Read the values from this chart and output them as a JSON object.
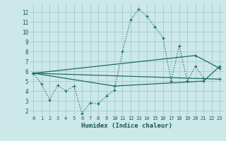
{
  "title": "",
  "xlabel": "Humidex (Indice chaleur)",
  "bg_color": "#cce8e8",
  "grid_color": "#aacfcf",
  "line_color": "#1a6b6b",
  "xlim": [
    -0.5,
    23.5
  ],
  "ylim": [
    1.5,
    12.8
  ],
  "xticks": [
    0,
    1,
    2,
    3,
    4,
    5,
    6,
    7,
    8,
    9,
    10,
    11,
    12,
    13,
    14,
    15,
    16,
    17,
    18,
    19,
    20,
    21,
    22,
    23
  ],
  "yticks": [
    2,
    3,
    4,
    5,
    6,
    7,
    8,
    9,
    10,
    11,
    12
  ],
  "series_main": {
    "x": [
      0,
      1,
      2,
      3,
      4,
      5,
      6,
      7,
      8,
      9,
      10,
      11,
      12,
      13,
      14,
      15,
      16,
      17,
      18,
      19,
      20,
      21
    ],
    "y": [
      5.8,
      4.7,
      3.1,
      4.6,
      4.0,
      4.5,
      1.7,
      2.8,
      2.7,
      3.5,
      4.1,
      8.0,
      11.2,
      12.3,
      11.6,
      10.5,
      9.4,
      5.0,
      8.6,
      5.0,
      6.5,
      5.3
    ]
  },
  "series_lines": [
    {
      "x": [
        0,
        23
      ],
      "y": [
        5.8,
        5.2
      ]
    },
    {
      "x": [
        0,
        20,
        23
      ],
      "y": [
        5.8,
        7.6,
        6.3
      ]
    },
    {
      "x": [
        0,
        10,
        21,
        23
      ],
      "y": [
        5.8,
        4.5,
        5.0,
        6.5
      ]
    }
  ]
}
